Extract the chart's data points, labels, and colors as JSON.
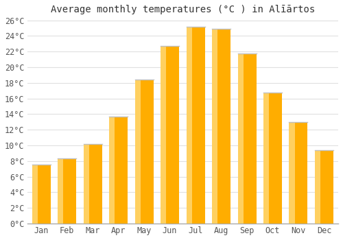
{
  "months": [
    "Jan",
    "Feb",
    "Mar",
    "Apr",
    "May",
    "Jun",
    "Jul",
    "Aug",
    "Sep",
    "Oct",
    "Nov",
    "Dec"
  ],
  "values": [
    7.5,
    8.3,
    10.2,
    13.7,
    18.4,
    22.7,
    25.2,
    24.9,
    21.8,
    16.8,
    13.0,
    9.4
  ],
  "bar_color_main": "#FFAD00",
  "bar_color_highlight": "#FFD060",
  "bar_color_shadow": "#E89500",
  "bar_top_color": "#C0C0C0",
  "title": "Average monthly temperatures (°C ) in Alīārtos",
  "ylim_min": 0,
  "ylim_max": 26,
  "ytick_step": 2,
  "background_color": "#ffffff",
  "plot_bg_color": "#f8f8f8",
  "grid_color": "#e0e0e0",
  "title_fontsize": 10,
  "tick_fontsize": 8.5,
  "bar_width": 0.72
}
